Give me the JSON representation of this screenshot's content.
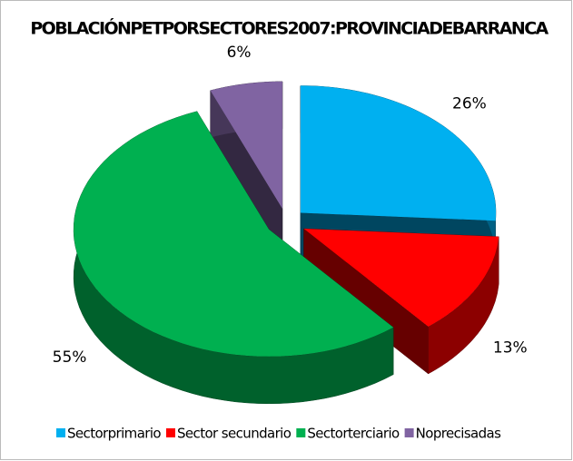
{
  "chart_data": {
    "type": "pie",
    "title": "POBLACIÓNPETPORSECTORES2007:PROVINCIADEBARRANCA",
    "categories": [
      "Sectorprimario",
      "Sector secundario",
      "Sectorterciario",
      "Noprecisadas"
    ],
    "values": [
      26,
      13,
      55,
      6
    ],
    "value_labels": [
      "26%",
      "13%",
      "55%",
      "6%"
    ],
    "colors": [
      "#00b0f0",
      "#ff0000",
      "#00b050",
      "#8064a2"
    ],
    "legend": "bottom"
  }
}
